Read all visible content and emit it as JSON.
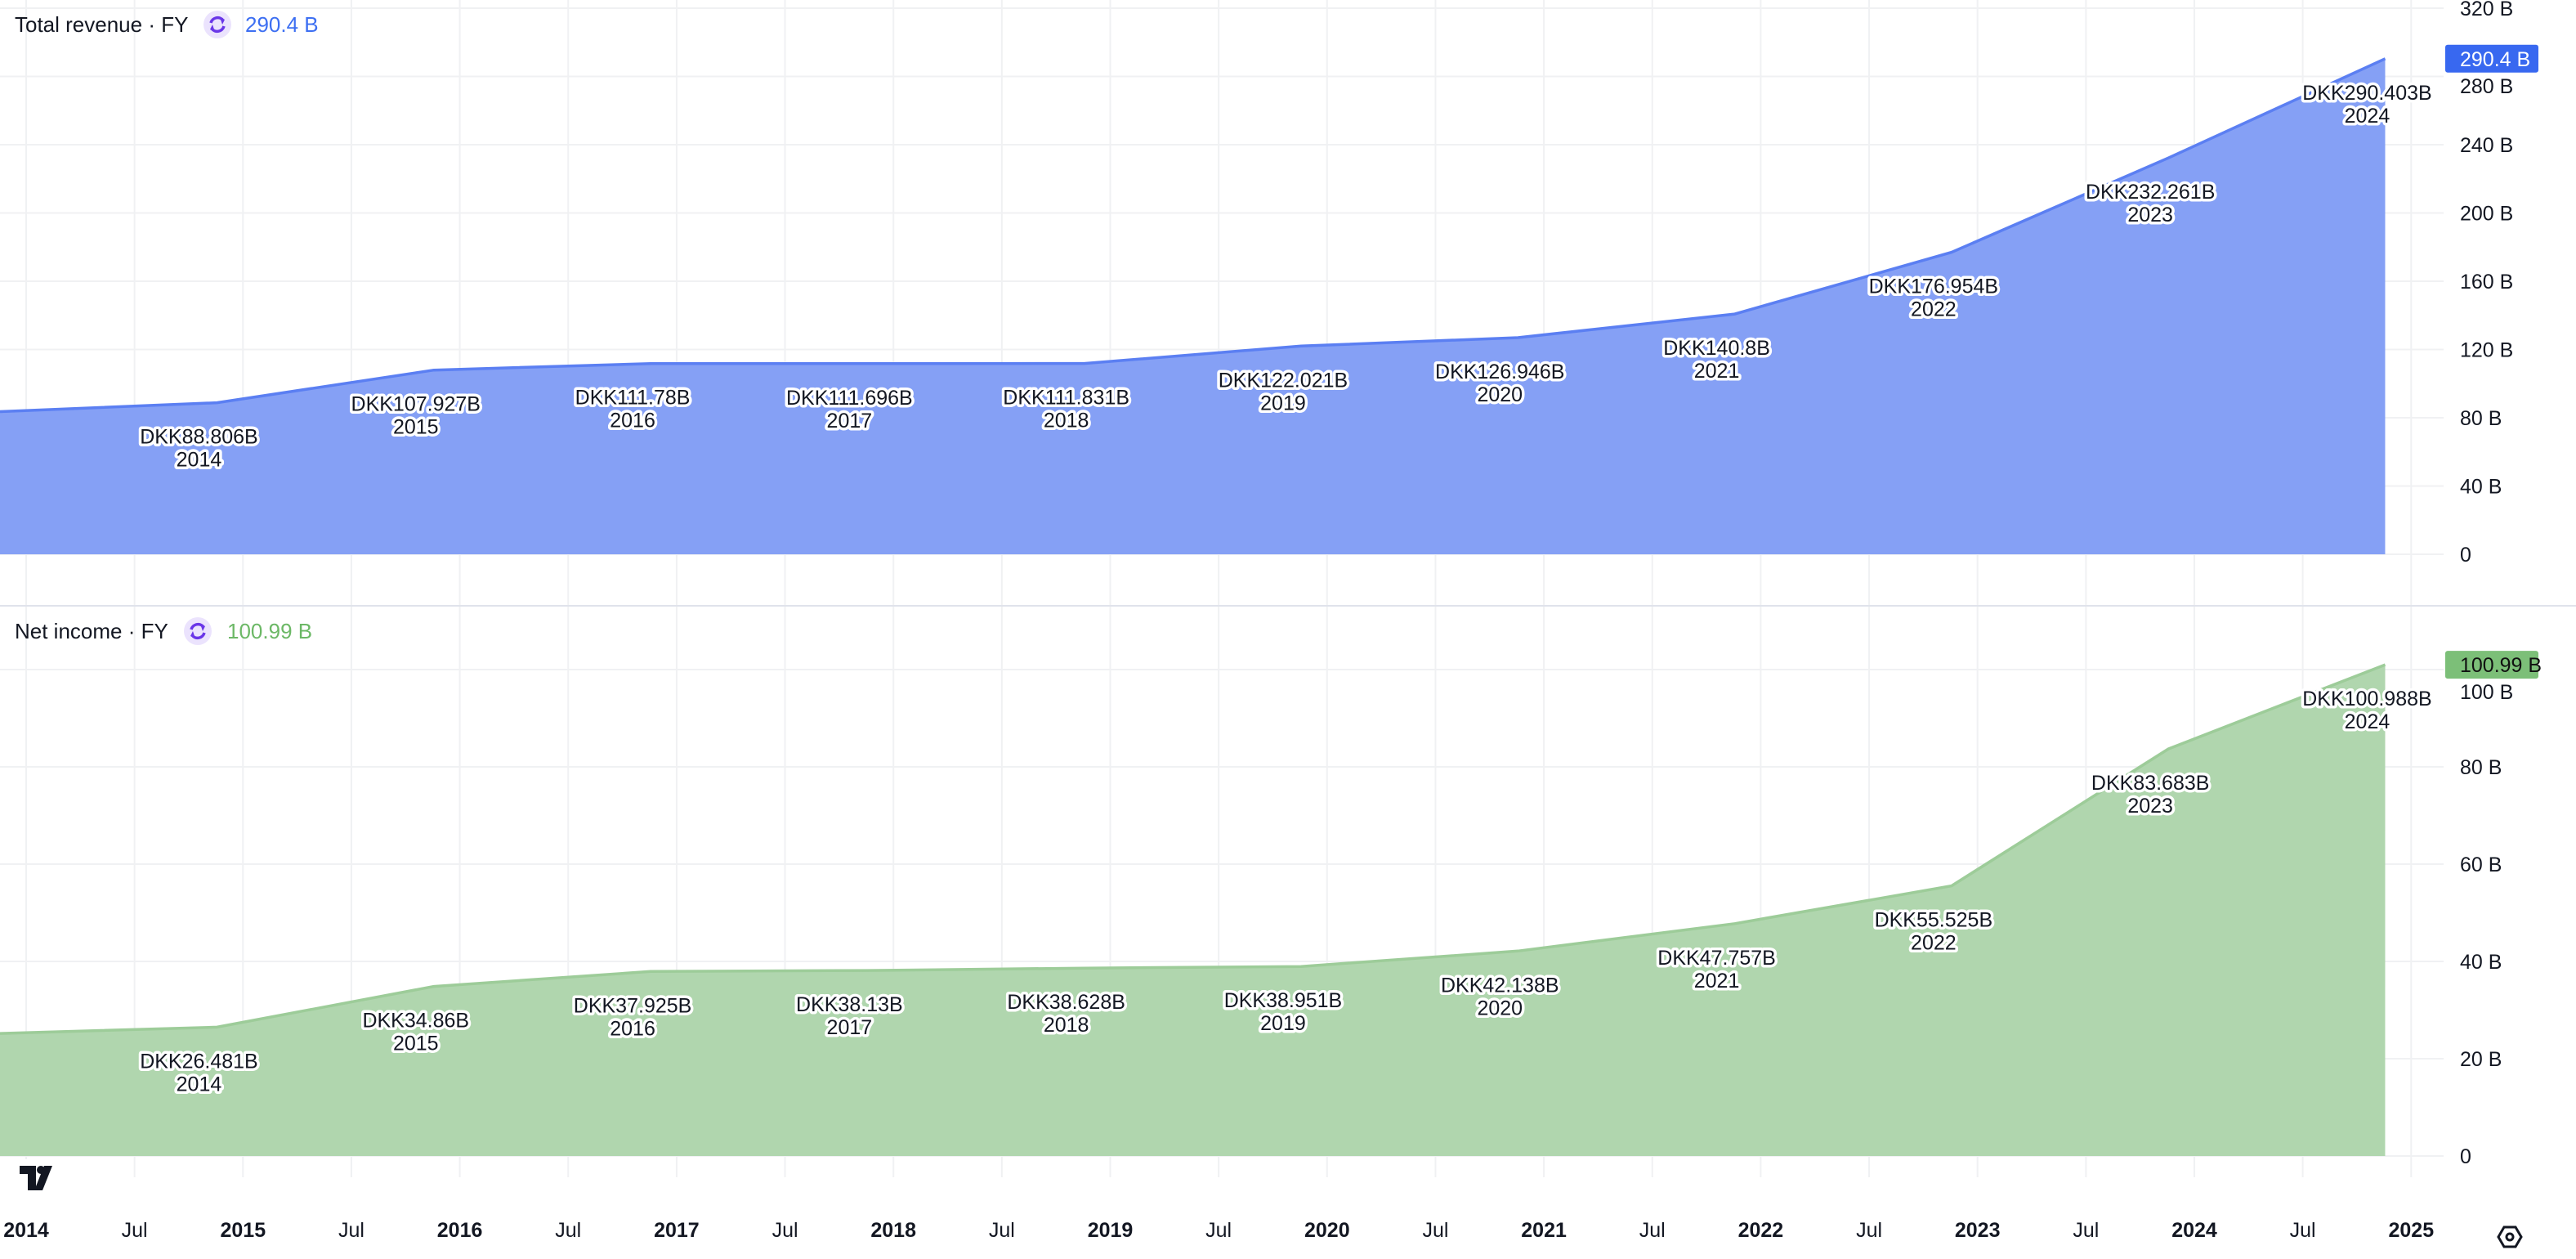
{
  "chart_data": [
    {
      "type": "area",
      "title": "Total revenue · FY",
      "current_value": "290.4 B",
      "badge": "290.4 B",
      "line_color": "#5b7ff2",
      "fill_color": "#85a0f5",
      "value_color": "#3d6ff2",
      "badge_color": "#3868f0",
      "badge_text_color": "#ffffff",
      "ylim": [
        0,
        320
      ],
      "yticks": [
        {
          "v": 0,
          "label": "0"
        },
        {
          "v": 40,
          "label": "40 B"
        },
        {
          "v": 80,
          "label": "80 B"
        },
        {
          "v": 120,
          "label": "120 B"
        },
        {
          "v": 160,
          "label": "160 B"
        },
        {
          "v": 200,
          "label": "200 B"
        },
        {
          "v": 240,
          "label": "240 B"
        },
        {
          "v": 280,
          "label": "280 B"
        },
        {
          "v": 320,
          "label": "320 B"
        }
      ],
      "lead_in_value": 83.6,
      "points": [
        {
          "year": "2014",
          "value": 88.806,
          "label": "DKK88.806B"
        },
        {
          "year": "2015",
          "value": 107.927,
          "label": "DKK107.927B"
        },
        {
          "year": "2016",
          "value": 111.78,
          "label": "DKK111.78B"
        },
        {
          "year": "2017",
          "value": 111.696,
          "label": "DKK111.696B"
        },
        {
          "year": "2018",
          "value": 111.831,
          "label": "DKK111.831B"
        },
        {
          "year": "2019",
          "value": 122.021,
          "label": "DKK122.021B"
        },
        {
          "year": "2020",
          "value": 126.946,
          "label": "DKK126.946B"
        },
        {
          "year": "2021",
          "value": 140.8,
          "label": "DKK140.8B"
        },
        {
          "year": "2022",
          "value": 176.954,
          "label": "DKK176.954B"
        },
        {
          "year": "2023",
          "value": 232.261,
          "label": "DKK232.261B"
        },
        {
          "year": "2024",
          "value": 290.403,
          "label": "DKK290.403B"
        }
      ]
    },
    {
      "type": "area",
      "title": "Net income · FY",
      "current_value": "100.99 B",
      "badge": "100.99 B",
      "line_color": "#9dcc99",
      "fill_color": "#b0d6ae",
      "value_color": "#6cb866",
      "badge_color": "#7cbf78",
      "badge_text_color": "#111111",
      "ylim": [
        0,
        120
      ],
      "yticks": [
        {
          "v": 0,
          "label": "0"
        },
        {
          "v": 20,
          "label": "20 B"
        },
        {
          "v": 40,
          "label": "40 B"
        },
        {
          "v": 60,
          "label": "60 B"
        },
        {
          "v": 80,
          "label": "80 B"
        },
        {
          "v": 100,
          "label": "100 B"
        }
      ],
      "lead_in_value": 25.2,
      "points": [
        {
          "year": "2014",
          "value": 26.481,
          "label": "DKK26.481B"
        },
        {
          "year": "2015",
          "value": 34.86,
          "label": "DKK34.86B"
        },
        {
          "year": "2016",
          "value": 37.925,
          "label": "DKK37.925B"
        },
        {
          "year": "2017",
          "value": 38.13,
          "label": "DKK38.13B"
        },
        {
          "year": "2018",
          "value": 38.628,
          "label": "DKK38.628B"
        },
        {
          "year": "2019",
          "value": 38.951,
          "label": "DKK38.951B"
        },
        {
          "year": "2020",
          "value": 42.138,
          "label": "DKK42.138B"
        },
        {
          "year": "2021",
          "value": 47.757,
          "label": "DKK47.757B"
        },
        {
          "year": "2022",
          "value": 55.525,
          "label": "DKK55.525B"
        },
        {
          "year": "2023",
          "value": 83.683,
          "label": "DKK83.683B"
        },
        {
          "year": "2024",
          "value": 100.988,
          "label": "DKK100.988B"
        }
      ]
    }
  ],
  "x_axis": {
    "ticks": [
      {
        "t": 2014,
        "label": "2014",
        "major": true
      },
      {
        "t": 2014.5,
        "label": "Jul",
        "major": false
      },
      {
        "t": 2015,
        "label": "2015",
        "major": true
      },
      {
        "t": 2015.5,
        "label": "Jul",
        "major": false
      },
      {
        "t": 2016,
        "label": "2016",
        "major": true
      },
      {
        "t": 2016.5,
        "label": "Jul",
        "major": false
      },
      {
        "t": 2017,
        "label": "2017",
        "major": true
      },
      {
        "t": 2017.5,
        "label": "Jul",
        "major": false
      },
      {
        "t": 2018,
        "label": "2018",
        "major": true
      },
      {
        "t": 2018.5,
        "label": "Jul",
        "major": false
      },
      {
        "t": 2019,
        "label": "2019",
        "major": true
      },
      {
        "t": 2019.5,
        "label": "Jul",
        "major": false
      },
      {
        "t": 2020,
        "label": "2020",
        "major": true
      },
      {
        "t": 2020.5,
        "label": "Jul",
        "major": false
      },
      {
        "t": 2021,
        "label": "2021",
        "major": true
      },
      {
        "t": 2021.5,
        "label": "Jul",
        "major": false
      },
      {
        "t": 2022,
        "label": "2022",
        "major": true
      },
      {
        "t": 2022.5,
        "label": "Jul",
        "major": false
      },
      {
        "t": 2023,
        "label": "2023",
        "major": true
      },
      {
        "t": 2023.5,
        "label": "Jul",
        "major": false
      },
      {
        "t": 2024,
        "label": "2024",
        "major": true
      },
      {
        "t": 2024.5,
        "label": "Jul",
        "major": false
      },
      {
        "t": 2025,
        "label": "2025",
        "major": true
      }
    ]
  },
  "icons": {
    "refresh": "refresh-icon",
    "settings": "settings-icon",
    "logo": "tradingview-logo"
  }
}
